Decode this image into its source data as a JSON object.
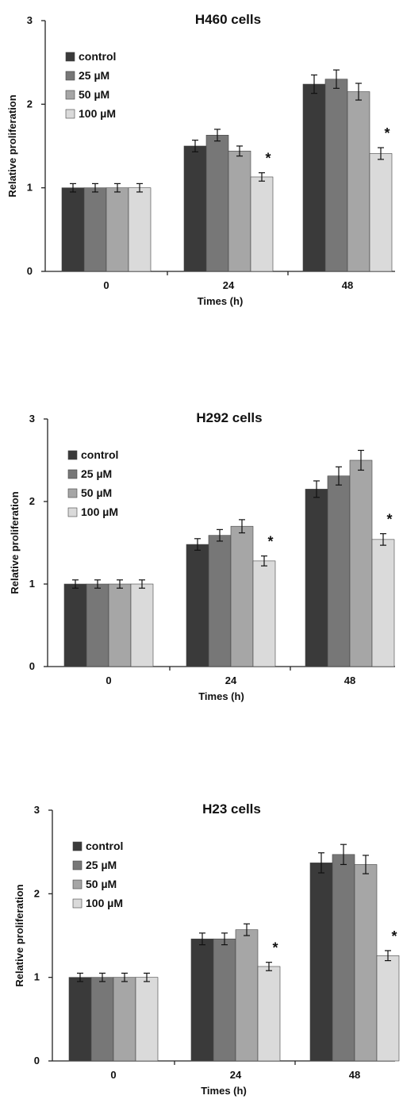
{
  "chart_data": [
    {
      "type": "bar",
      "title": "H460 cells",
      "xlabel": "Times (h)",
      "ylabel": "Relative proliferation",
      "ylim": [
        0,
        3
      ],
      "yticks": [
        "0",
        "1",
        "2",
        "3"
      ],
      "categories": [
        "0",
        "24",
        "48"
      ],
      "legend_position": "top-left",
      "series": [
        {
          "name": "control",
          "color": "#3a3a3a",
          "values": [
            1.0,
            1.5,
            2.24
          ],
          "errors": [
            0.05,
            0.07,
            0.11
          ]
        },
        {
          "name": "25 µM",
          "color": "#777777",
          "values": [
            1.0,
            1.63,
            2.3
          ],
          "errors": [
            0.05,
            0.07,
            0.11
          ]
        },
        {
          "name": "50 µM",
          "color": "#a6a6a6",
          "values": [
            1.0,
            1.44,
            2.15
          ],
          "errors": [
            0.05,
            0.06,
            0.1
          ]
        },
        {
          "name": "100 µM",
          "color": "#dadada",
          "values": [
            1.0,
            1.13,
            1.41
          ],
          "errors": [
            0.05,
            0.05,
            0.07
          ]
        }
      ],
      "annotations": [
        {
          "text": "*",
          "category": "24",
          "series": "100 µM"
        },
        {
          "text": "*",
          "category": "48",
          "series": "100 µM"
        }
      ]
    },
    {
      "type": "bar",
      "title": "H292 cells",
      "xlabel": "Times (h)",
      "ylabel": "Relative proliferation",
      "ylim": [
        0,
        3
      ],
      "yticks": [
        "0",
        "1",
        "2",
        "3"
      ],
      "categories": [
        "0",
        "24",
        "48"
      ],
      "legend_position": "top-left",
      "series": [
        {
          "name": "control",
          "color": "#3a3a3a",
          "values": [
            1.0,
            1.48,
            2.15
          ],
          "errors": [
            0.05,
            0.07,
            0.1
          ]
        },
        {
          "name": "25 µM",
          "color": "#777777",
          "values": [
            1.0,
            1.59,
            2.31
          ],
          "errors": [
            0.05,
            0.07,
            0.11
          ]
        },
        {
          "name": "50 µM",
          "color": "#a6a6a6",
          "values": [
            1.0,
            1.7,
            2.5
          ],
          "errors": [
            0.05,
            0.08,
            0.12
          ]
        },
        {
          "name": "100 µM",
          "color": "#dadada",
          "values": [
            1.0,
            1.28,
            1.54
          ],
          "errors": [
            0.05,
            0.06,
            0.07
          ]
        }
      ],
      "annotations": [
        {
          "text": "*",
          "category": "24",
          "series": "100 µM"
        },
        {
          "text": "*",
          "category": "48",
          "series": "100 µM"
        }
      ]
    },
    {
      "type": "bar",
      "title": "H23 cells",
      "xlabel": "Times (h)",
      "ylabel": "Relative proliferation",
      "ylim": [
        0,
        3
      ],
      "yticks": [
        "0",
        "1",
        "2",
        "3"
      ],
      "categories": [
        "0",
        "24",
        "48"
      ],
      "legend_position": "top-left",
      "series": [
        {
          "name": "control",
          "color": "#3a3a3a",
          "values": [
            1.0,
            1.46,
            2.37
          ],
          "errors": [
            0.05,
            0.07,
            0.12
          ]
        },
        {
          "name": "25 µM",
          "color": "#777777",
          "values": [
            1.0,
            1.46,
            2.47
          ],
          "errors": [
            0.05,
            0.07,
            0.12
          ]
        },
        {
          "name": "50 µM",
          "color": "#a6a6a6",
          "values": [
            1.0,
            1.57,
            2.35
          ],
          "errors": [
            0.05,
            0.07,
            0.11
          ]
        },
        {
          "name": "100 µM",
          "color": "#dadada",
          "values": [
            1.0,
            1.13,
            1.26
          ],
          "errors": [
            0.05,
            0.05,
            0.06
          ]
        }
      ],
      "annotations": [
        {
          "text": "*",
          "category": "24",
          "series": "100 µM"
        },
        {
          "text": "*",
          "category": "48",
          "series": "100 µM"
        }
      ]
    }
  ]
}
